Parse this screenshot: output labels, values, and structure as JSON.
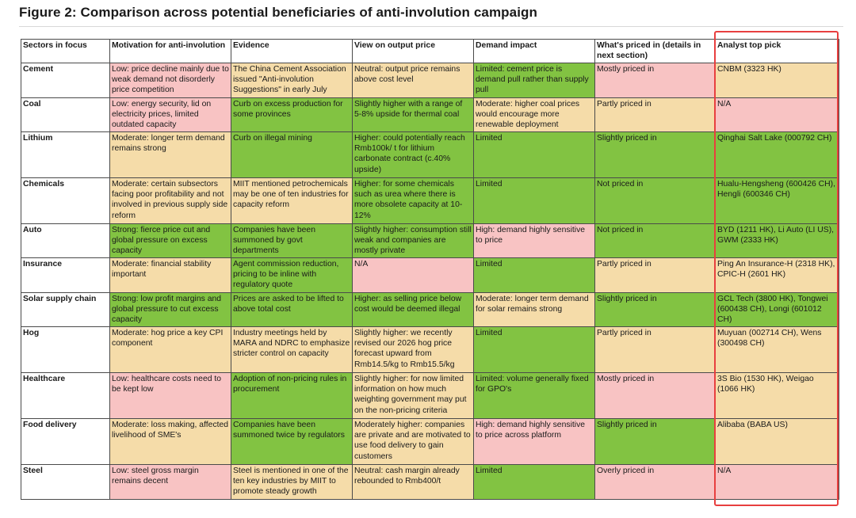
{
  "title": "Figure 2: Comparison across potential beneficiaries of anti-involution campaign",
  "colors": {
    "green": "#82c342",
    "red": "#f8c3c3",
    "yellow": "#f5dca9",
    "highlight": "#e83f3f"
  },
  "headers": [
    "Sectors in focus",
    "Motivation for anti-involution",
    "Evidence",
    "View on output price",
    "Demand impact",
    "What's priced in (details in next section)",
    "Analyst top pick"
  ],
  "rows": [
    {
      "sector": "Cement",
      "cells": [
        {
          "text": "Low: price decline mainly due to weak demand not disorderly price competition",
          "color": "r"
        },
        {
          "text": "The China Cement Association issued \"Anti-involution Suggestions\" in early July",
          "color": "y"
        },
        {
          "text": "Neutral: output price remains above cost level",
          "color": "y"
        },
        {
          "text": "Limited: cement price is demand pull rather than supply pull",
          "color": "g"
        },
        {
          "text": "Mostly priced in",
          "color": "r"
        },
        {
          "text": "CNBM (3323 HK)",
          "color": "y"
        }
      ]
    },
    {
      "sector": "Coal",
      "cells": [
        {
          "text": "Low: energy security, lid on electricity prices, limited outdated capacity",
          "color": "r"
        },
        {
          "text": "Curb on excess production for some provinces",
          "color": "g"
        },
        {
          "text": "Slightly higher with a range of 5-8% upside for thermal coal",
          "color": "g"
        },
        {
          "text": "Moderate: higher coal prices would encourage more renewable deployment",
          "color": "y"
        },
        {
          "text": "Partly priced in",
          "color": "y"
        },
        {
          "text": "N/A",
          "color": "r"
        }
      ]
    },
    {
      "sector": "Lithium",
      "cells": [
        {
          "text": "Moderate: longer term demand remains strong",
          "color": "y"
        },
        {
          "text": "Curb on illegal mining",
          "color": "g"
        },
        {
          "text": "Higher: could potentially reach Rmb100k/ t for lithium carbonate contract (c.40% upside)",
          "color": "g"
        },
        {
          "text": "Limited",
          "color": "g"
        },
        {
          "text": "Slightly priced in",
          "color": "g"
        },
        {
          "text": "Qinghai Salt Lake (000792 CH)",
          "color": "g"
        }
      ]
    },
    {
      "sector": "Chemicals",
      "cells": [
        {
          "text": "Moderate: certain subsectors facing poor profitability and not involved in previous supply side reform",
          "color": "y"
        },
        {
          "text": "MIIT mentioned petrochemicals may be one of ten industries for capacity reform",
          "color": "y"
        },
        {
          "text": "Higher: for some chemicals such as urea where there is more obsolete capacity at 10-12%",
          "color": "g"
        },
        {
          "text": "Limited",
          "color": "g"
        },
        {
          "text": "Not priced in",
          "color": "g"
        },
        {
          "text": "Hualu-Hengsheng (600426 CH), Hengli (600346 CH)",
          "color": "g"
        }
      ]
    },
    {
      "sector": "Auto",
      "cells": [
        {
          "text": "Strong: fierce price cut and global pressure on excess capacity",
          "color": "g"
        },
        {
          "text": "Companies have been summoned by govt departments",
          "color": "g"
        },
        {
          "text": "Slightly higher: consumption still weak and companies are mostly private",
          "color": "g"
        },
        {
          "text": "High: demand highly sensitive to price",
          "color": "r"
        },
        {
          "text": "Not priced in",
          "color": "g"
        },
        {
          "text": "BYD (1211 HK), Li Auto (LI US), GWM (2333 HK)",
          "color": "g"
        }
      ]
    },
    {
      "sector": "Insurance",
      "cells": [
        {
          "text": "Moderate: financial stability important",
          "color": "y"
        },
        {
          "text": "Agent commission reduction, pricing to be inline with regulatory quote",
          "color": "g"
        },
        {
          "text": "N/A",
          "color": "r"
        },
        {
          "text": "Limited",
          "color": "g"
        },
        {
          "text": "Partly priced in",
          "color": "y"
        },
        {
          "text": "Ping An Insurance-H (2318 HK), CPIC-H (2601 HK)",
          "color": "y"
        }
      ]
    },
    {
      "sector": "Solar supply chain",
      "cells": [
        {
          "text": "Strong: low profit margins and global pressure to cut excess capacity",
          "color": "g"
        },
        {
          "text": "Prices are asked to be lifted to above total cost",
          "color": "g"
        },
        {
          "text": "Higher: as selling price below cost would be deemed illegal",
          "color": "g"
        },
        {
          "text": "Moderate: longer term demand for solar remains strong",
          "color": "y"
        },
        {
          "text": "Slightly priced in",
          "color": "g"
        },
        {
          "text": "GCL Tech (3800 HK), Tongwei (600438 CH), Longi (601012 CH)",
          "color": "g"
        }
      ]
    },
    {
      "sector": "Hog",
      "cells": [
        {
          "text": "Moderate: hog price a key CPI component",
          "color": "y"
        },
        {
          "text": "Industry meetings held by MARA and NDRC to emphasize stricter control on capacity",
          "color": "y"
        },
        {
          "text": "Slightly higher: we recently revised our 2026 hog price forecast upward from Rmb14.5/kg to Rmb15.5/kg",
          "color": "y"
        },
        {
          "text": "Limited",
          "color": "g"
        },
        {
          "text": "Partly priced in",
          "color": "y"
        },
        {
          "text": "Muyuan (002714 CH), Wens (300498 CH)",
          "color": "y"
        }
      ]
    },
    {
      "sector": "Healthcare",
      "cells": [
        {
          "text": "Low: healthcare costs need to be kept low",
          "color": "r"
        },
        {
          "text": "Adoption of non-pricing rules in procurement",
          "color": "g"
        },
        {
          "text": "Slightly higher: for now limited information on how much weighting government may put on the non-pricing criteria",
          "color": "y"
        },
        {
          "text": "Limited: volume generally fixed for GPO's",
          "color": "g"
        },
        {
          "text": "Mostly priced in",
          "color": "r"
        },
        {
          "text": "3S Bio (1530 HK), Weigao (1066 HK)",
          "color": "y"
        }
      ]
    },
    {
      "sector": "Food delivery",
      "cells": [
        {
          "text": "Moderate: loss making, affected livelihood of SME's",
          "color": "y"
        },
        {
          "text": "Companies have been summoned twice by regulators",
          "color": "g"
        },
        {
          "text": "Moderately higher: companies are private and are motivated to use food delivery to gain customers",
          "color": "y"
        },
        {
          "text": "High: demand highly sensitive to price across platform",
          "color": "r"
        },
        {
          "text": "Slightly priced in",
          "color": "g"
        },
        {
          "text": "Alibaba (BABA US)",
          "color": "y"
        }
      ]
    },
    {
      "sector": "Steel",
      "cells": [
        {
          "text": "Low: steel gross margin remains decent",
          "color": "r"
        },
        {
          "text": "Steel is mentioned in one of the ten key industries by MIIT to promote steady growth",
          "color": "y"
        },
        {
          "text": "Neutral: cash margin already rebounded to Rmb400/t",
          "color": "y"
        },
        {
          "text": "Limited",
          "color": "g"
        },
        {
          "text": "Overly priced in",
          "color": "r"
        },
        {
          "text": "N/A",
          "color": "r"
        }
      ]
    }
  ]
}
